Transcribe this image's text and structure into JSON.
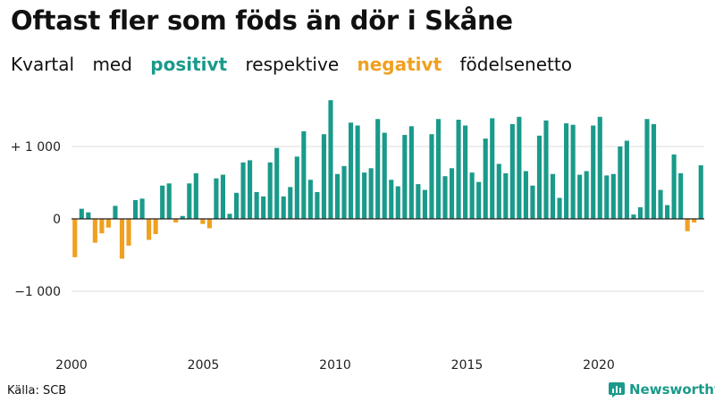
{
  "title": "Oftast fler som föds än dör i Skåne",
  "subtitle": {
    "part1": "Kvartal",
    "part2": "med",
    "positive": "positivt",
    "part3": "respektive",
    "negative": "negativt",
    "part4": "födelsenetto"
  },
  "source": "Källa: SCB",
  "brand": {
    "name": "Newsworthy",
    "icon": "bar-chart-icon"
  },
  "colors": {
    "positive": "#1a9a8a",
    "negative": "#f0a020",
    "grid": "#dddddd",
    "axis": "#222222"
  },
  "chart_data": {
    "type": "bar",
    "ytick_labels": [
      "+ 1 000",
      "0",
      "−1 000"
    ],
    "yticks": [
      1000,
      0,
      -1000
    ],
    "xtick_labels": [
      "2000",
      "2005",
      "2010",
      "2015",
      "2020"
    ],
    "xtick_years": [
      2000,
      2005,
      2010,
      2015,
      2020
    ],
    "ylim": [
      -1500,
      1700
    ],
    "x_start_year": 2000,
    "x_end_year": 2024,
    "grid": true,
    "values": [
      -530,
      140,
      90,
      -330,
      -200,
      -120,
      180,
      -550,
      -370,
      260,
      280,
      -290,
      -210,
      460,
      490,
      -50,
      40,
      490,
      630,
      -70,
      -130,
      560,
      610,
      70,
      360,
      780,
      810,
      370,
      310,
      780,
      980,
      310,
      440,
      860,
      1210,
      540,
      370,
      1170,
      1640,
      620,
      730,
      1330,
      1290,
      640,
      700,
      1380,
      1190,
      540,
      450,
      1160,
      1280,
      480,
      400,
      1170,
      1380,
      590,
      700,
      1370,
      1290,
      640,
      510,
      1110,
      1390,
      760,
      630,
      1310,
      1410,
      660,
      460,
      1150,
      1360,
      620,
      290,
      1320,
      1300,
      610,
      660,
      1290,
      1410,
      600,
      620,
      1000,
      1080,
      60,
      160,
      1380,
      1310,
      400,
      190,
      890,
      630,
      -170,
      -50,
      740
    ]
  }
}
